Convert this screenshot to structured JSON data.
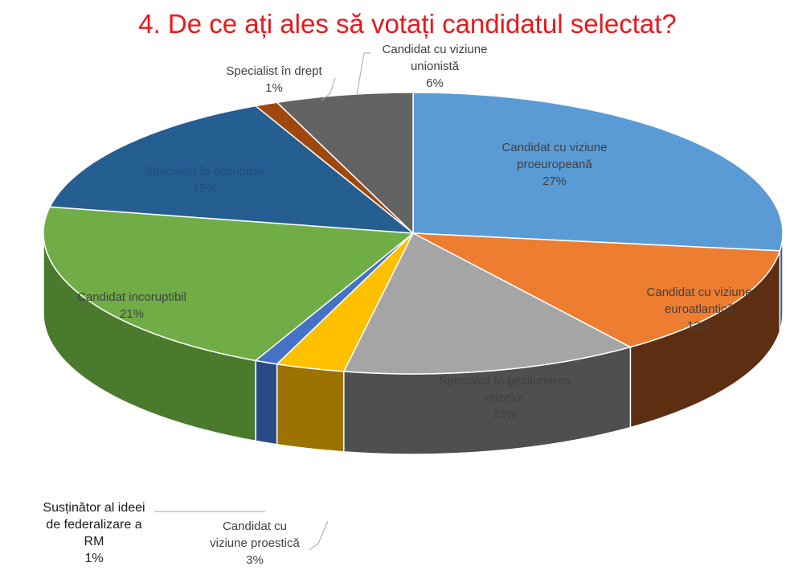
{
  "chart_data": {
    "type": "pie",
    "title": "4. De ce ați ales să votați candidatul selectat?",
    "slices": [
      {
        "label_lines": [
          "Candidat cu viziune",
          "proeuropeană"
        ],
        "value": 27,
        "value_label": "27%",
        "color": "#5B9BD5",
        "side_color": "#2F5F8C"
      },
      {
        "label_lines": [
          "Candidat cu viziune",
          "euroatlantică"
        ],
        "value": 13,
        "value_label": "13%",
        "color": "#ED7D31",
        "side_color": "#5E2E12"
      },
      {
        "label_lines": [
          "Specialist în gestionarea",
          "crizelor"
        ],
        "value": 13,
        "value_label": "13%",
        "color": "#A5A5A5",
        "side_color": "#4F4F4F"
      },
      {
        "label_lines": [
          "Candidat cu",
          "viziune proestică"
        ],
        "value": 3,
        "value_label": "3%",
        "color": "#FFC000",
        "side_color": "#9C7300"
      },
      {
        "label_lines": [
          "Susținător al ideei",
          "de federalizare a",
          "RM"
        ],
        "value": 1,
        "value_label": "1%",
        "color": "#4472C4",
        "side_color": "#2A4A86"
      },
      {
        "label_lines": [
          "Candidat incoruptibil"
        ],
        "value": 21,
        "value_label": "21%",
        "color": "#70AD47",
        "side_color": "#4A7A2C"
      },
      {
        "label_lines": [
          "Specialist în economie"
        ],
        "value": 15,
        "value_label": "15%",
        "color": "#255E91",
        "side_color": "#173C5E"
      },
      {
        "label_lines": [
          "Specialist în drept"
        ],
        "value": 1,
        "value_label": "1%",
        "color": "#9E480E",
        "side_color": "#6A2F08"
      },
      {
        "label_lines": [
          "Candidat cu viziune",
          "unionistă"
        ],
        "value": 6,
        "value_label": "6%",
        "color": "#636363",
        "side_color": "#3C3C3C"
      }
    ],
    "legend": "none",
    "labels": "category name and percentage on or beside each slice",
    "colors": {
      "title": "#E8191B",
      "label_dark": "#404040",
      "label_light": "#1F4E79"
    }
  }
}
